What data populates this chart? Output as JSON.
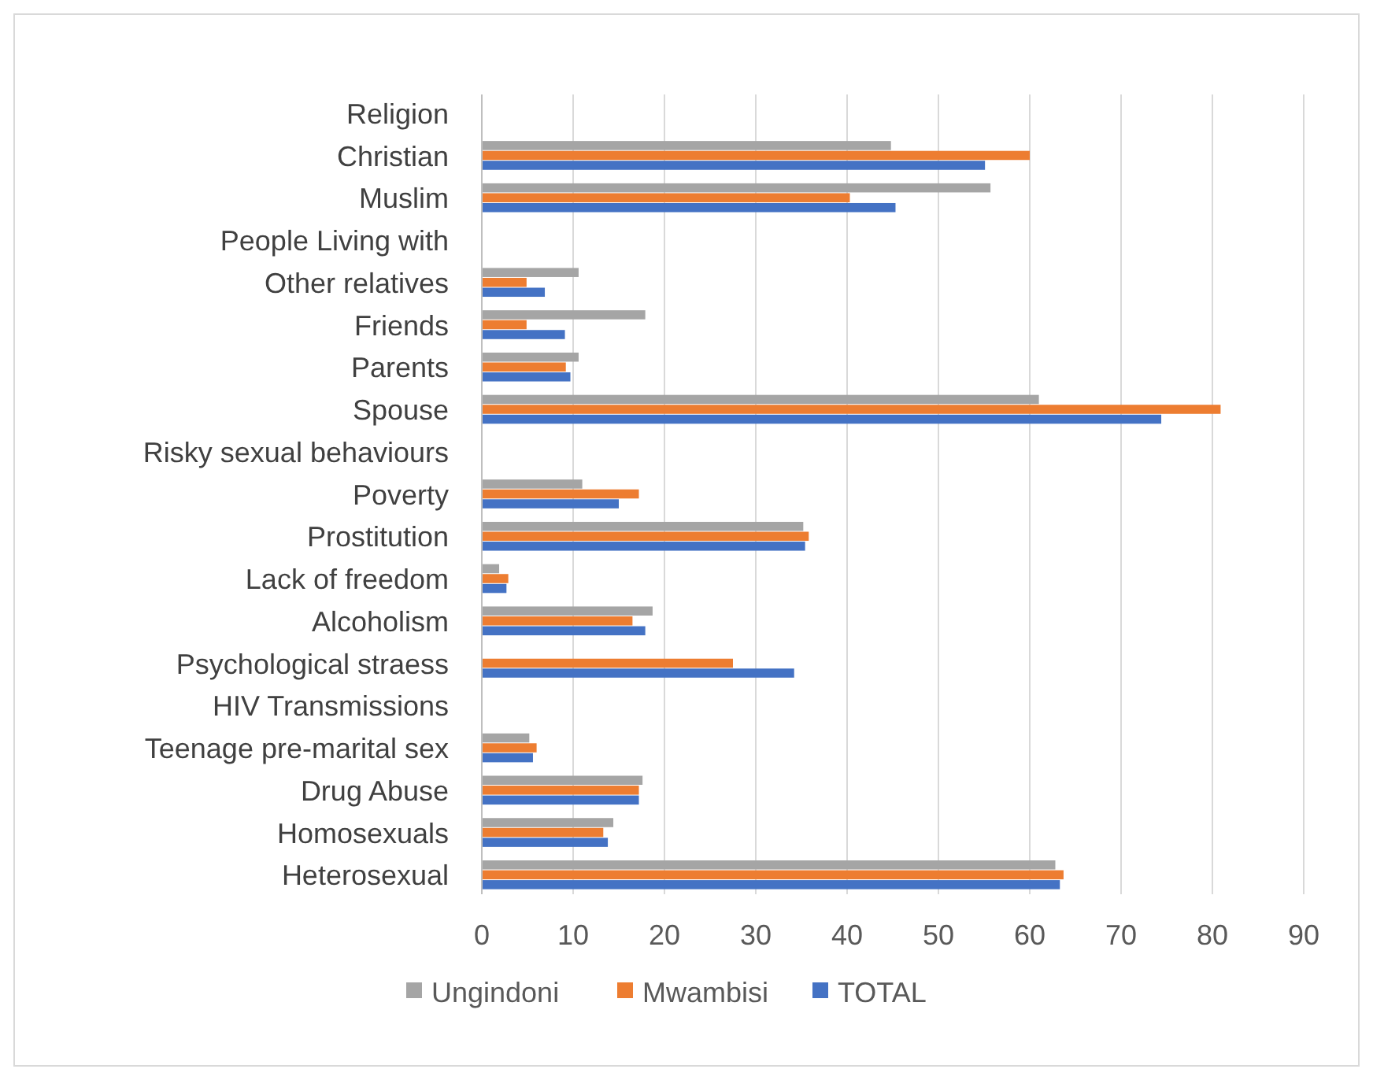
{
  "chart_data": {
    "type": "bar",
    "orientation": "horizontal",
    "categories": [
      "Religion",
      "Christian",
      "Muslim",
      "People Living with",
      "Other  relatives",
      "Friends",
      "Parents",
      "Spouse",
      "Risky sexual behaviours",
      "Poverty",
      "Prostitution",
      "Lack of freedom",
      "Alcoholism",
      "Psychological straess",
      "HIV Transmissions",
      "Teenage pre-marital sex",
      "Drug Abuse",
      "Homosexuals",
      "Heterosexual"
    ],
    "series": [
      {
        "name": "Ungindoni",
        "color": "#a5a5a5",
        "values": [
          null,
          44.8,
          55.7,
          null,
          10.6,
          17.9,
          10.6,
          61,
          null,
          11,
          35.2,
          1.9,
          18.7,
          null,
          null,
          5.2,
          17.6,
          14.4,
          62.8
        ]
      },
      {
        "name": "Mwambisi",
        "color": "#ed7d31",
        "values": [
          null,
          60,
          40.3,
          null,
          4.9,
          4.9,
          9.2,
          80.9,
          null,
          17.2,
          35.8,
          2.9,
          16.5,
          27.5,
          null,
          6,
          17.2,
          13.3,
          63.7
        ]
      },
      {
        "name": "TOTAL",
        "color": "#4472c4",
        "values": [
          null,
          55.1,
          45.3,
          null,
          6.9,
          9.1,
          9.7,
          74.4,
          null,
          15,
          35.4,
          2.7,
          17.9,
          34.2,
          null,
          5.6,
          17.2,
          13.8,
          63.3
        ]
      }
    ],
    "xlim": [
      0,
      90
    ],
    "xticks": [
      0,
      10,
      20,
      30,
      40,
      50,
      60,
      70,
      80,
      90
    ],
    "grid": "x",
    "legend": "bottom"
  }
}
